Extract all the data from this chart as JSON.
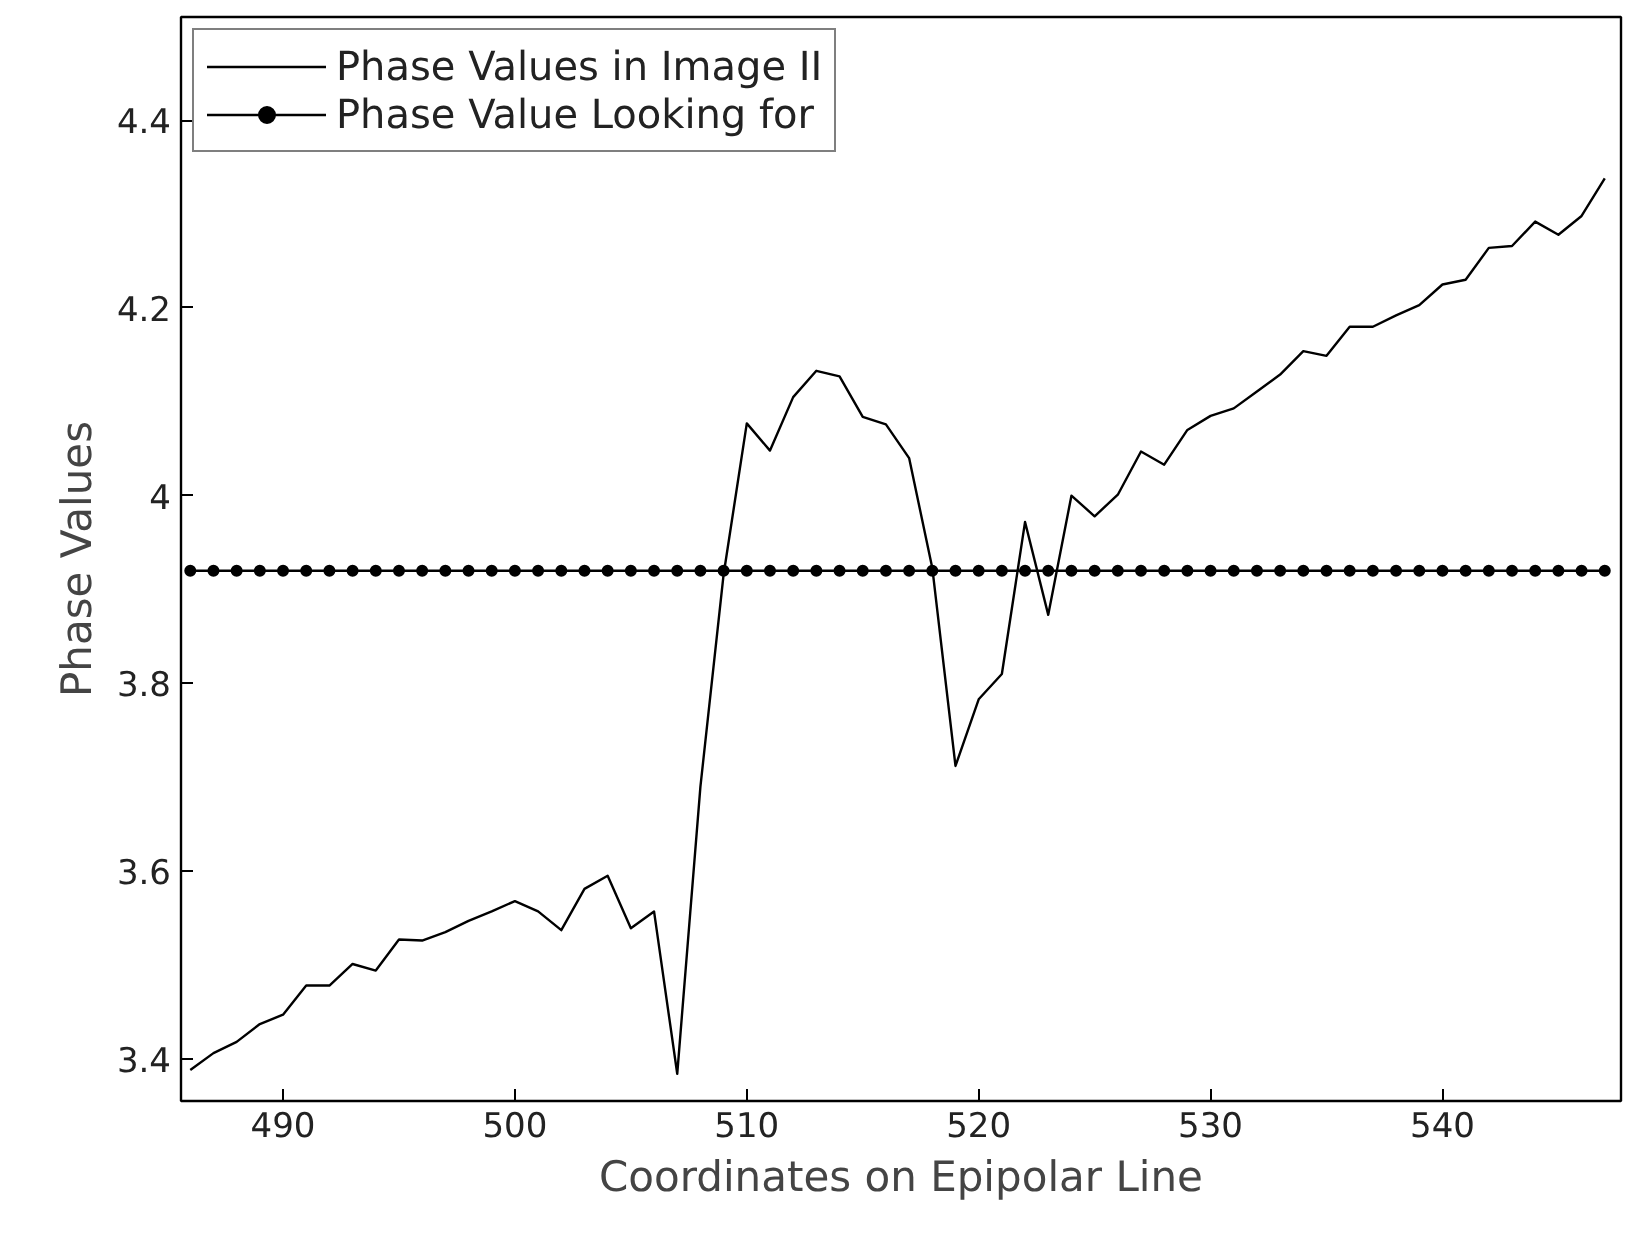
{
  "chart_data": {
    "type": "line",
    "xlabel": "Coordinates on Epipolar Line",
    "ylabel": "Phase Values",
    "x": [
      486,
      487,
      488,
      489,
      490,
      491,
      492,
      493,
      494,
      495,
      496,
      497,
      498,
      499,
      500,
      501,
      502,
      503,
      504,
      505,
      506,
      507,
      508,
      509,
      510,
      511,
      512,
      513,
      514,
      515,
      516,
      517,
      518,
      519,
      520,
      521,
      522,
      523,
      524,
      525,
      526,
      527,
      528,
      529,
      530,
      531,
      532,
      533,
      534,
      535,
      536,
      537,
      538,
      539,
      540,
      541,
      542,
      543,
      544,
      545,
      546,
      547
    ],
    "series": [
      {
        "name": "Phase Values in Image II",
        "color": "#000000",
        "marker": "none",
        "values": [
          3.388,
          3.406,
          3.418,
          3.437,
          3.447,
          3.478,
          3.478,
          3.501,
          3.494,
          3.527,
          3.526,
          3.535,
          3.547,
          3.557,
          3.568,
          3.557,
          3.537,
          3.581,
          3.595,
          3.539,
          3.557,
          3.384,
          3.69,
          3.916,
          4.077,
          4.048,
          4.105,
          4.133,
          4.127,
          4.084,
          4.076,
          4.04,
          3.923,
          3.712,
          3.783,
          3.81,
          3.972,
          3.873,
          4.0,
          3.978,
          4.001,
          4.047,
          4.033,
          4.07,
          4.085,
          4.093,
          4.111,
          4.129,
          4.154,
          4.149,
          4.18,
          4.18,
          4.192,
          4.203,
          4.225,
          4.23,
          4.264,
          4.266,
          4.292,
          4.278,
          4.298,
          4.338
        ]
      },
      {
        "name": "Phase Value Looking for",
        "color": "#000000",
        "marker": "circle",
        "values": [
          3.92,
          3.92,
          3.92,
          3.92,
          3.92,
          3.92,
          3.92,
          3.92,
          3.92,
          3.92,
          3.92,
          3.92,
          3.92,
          3.92,
          3.92,
          3.92,
          3.92,
          3.92,
          3.92,
          3.92,
          3.92,
          3.92,
          3.92,
          3.92,
          3.92,
          3.92,
          3.92,
          3.92,
          3.92,
          3.92,
          3.92,
          3.92,
          3.92,
          3.92,
          3.92,
          3.92,
          3.92,
          3.92,
          3.92,
          3.92,
          3.92,
          3.92,
          3.92,
          3.92,
          3.92,
          3.92,
          3.92,
          3.92,
          3.92,
          3.92,
          3.92,
          3.92,
          3.92,
          3.92,
          3.92,
          3.92,
          3.92,
          3.92,
          3.92,
          3.92,
          3.92,
          3.92
        ]
      }
    ],
    "xlim": [
      485.6,
      547.7
    ],
    "ylim": [
      3.355,
      4.51
    ],
    "xticks": [
      490,
      500,
      510,
      520,
      530,
      540
    ],
    "yticks": [
      {
        "value": 3.4,
        "label": "3.4"
      },
      {
        "value": 3.6,
        "label": "3.6"
      },
      {
        "value": 3.8,
        "label": "3.8"
      },
      {
        "value": 4,
        "label": "4"
      },
      {
        "value": 4.2,
        "label": "4.2"
      },
      {
        "value": 4.4,
        "label": "4.4"
      }
    ],
    "grid": false,
    "legend": "top left",
    "line_style": "solid"
  }
}
